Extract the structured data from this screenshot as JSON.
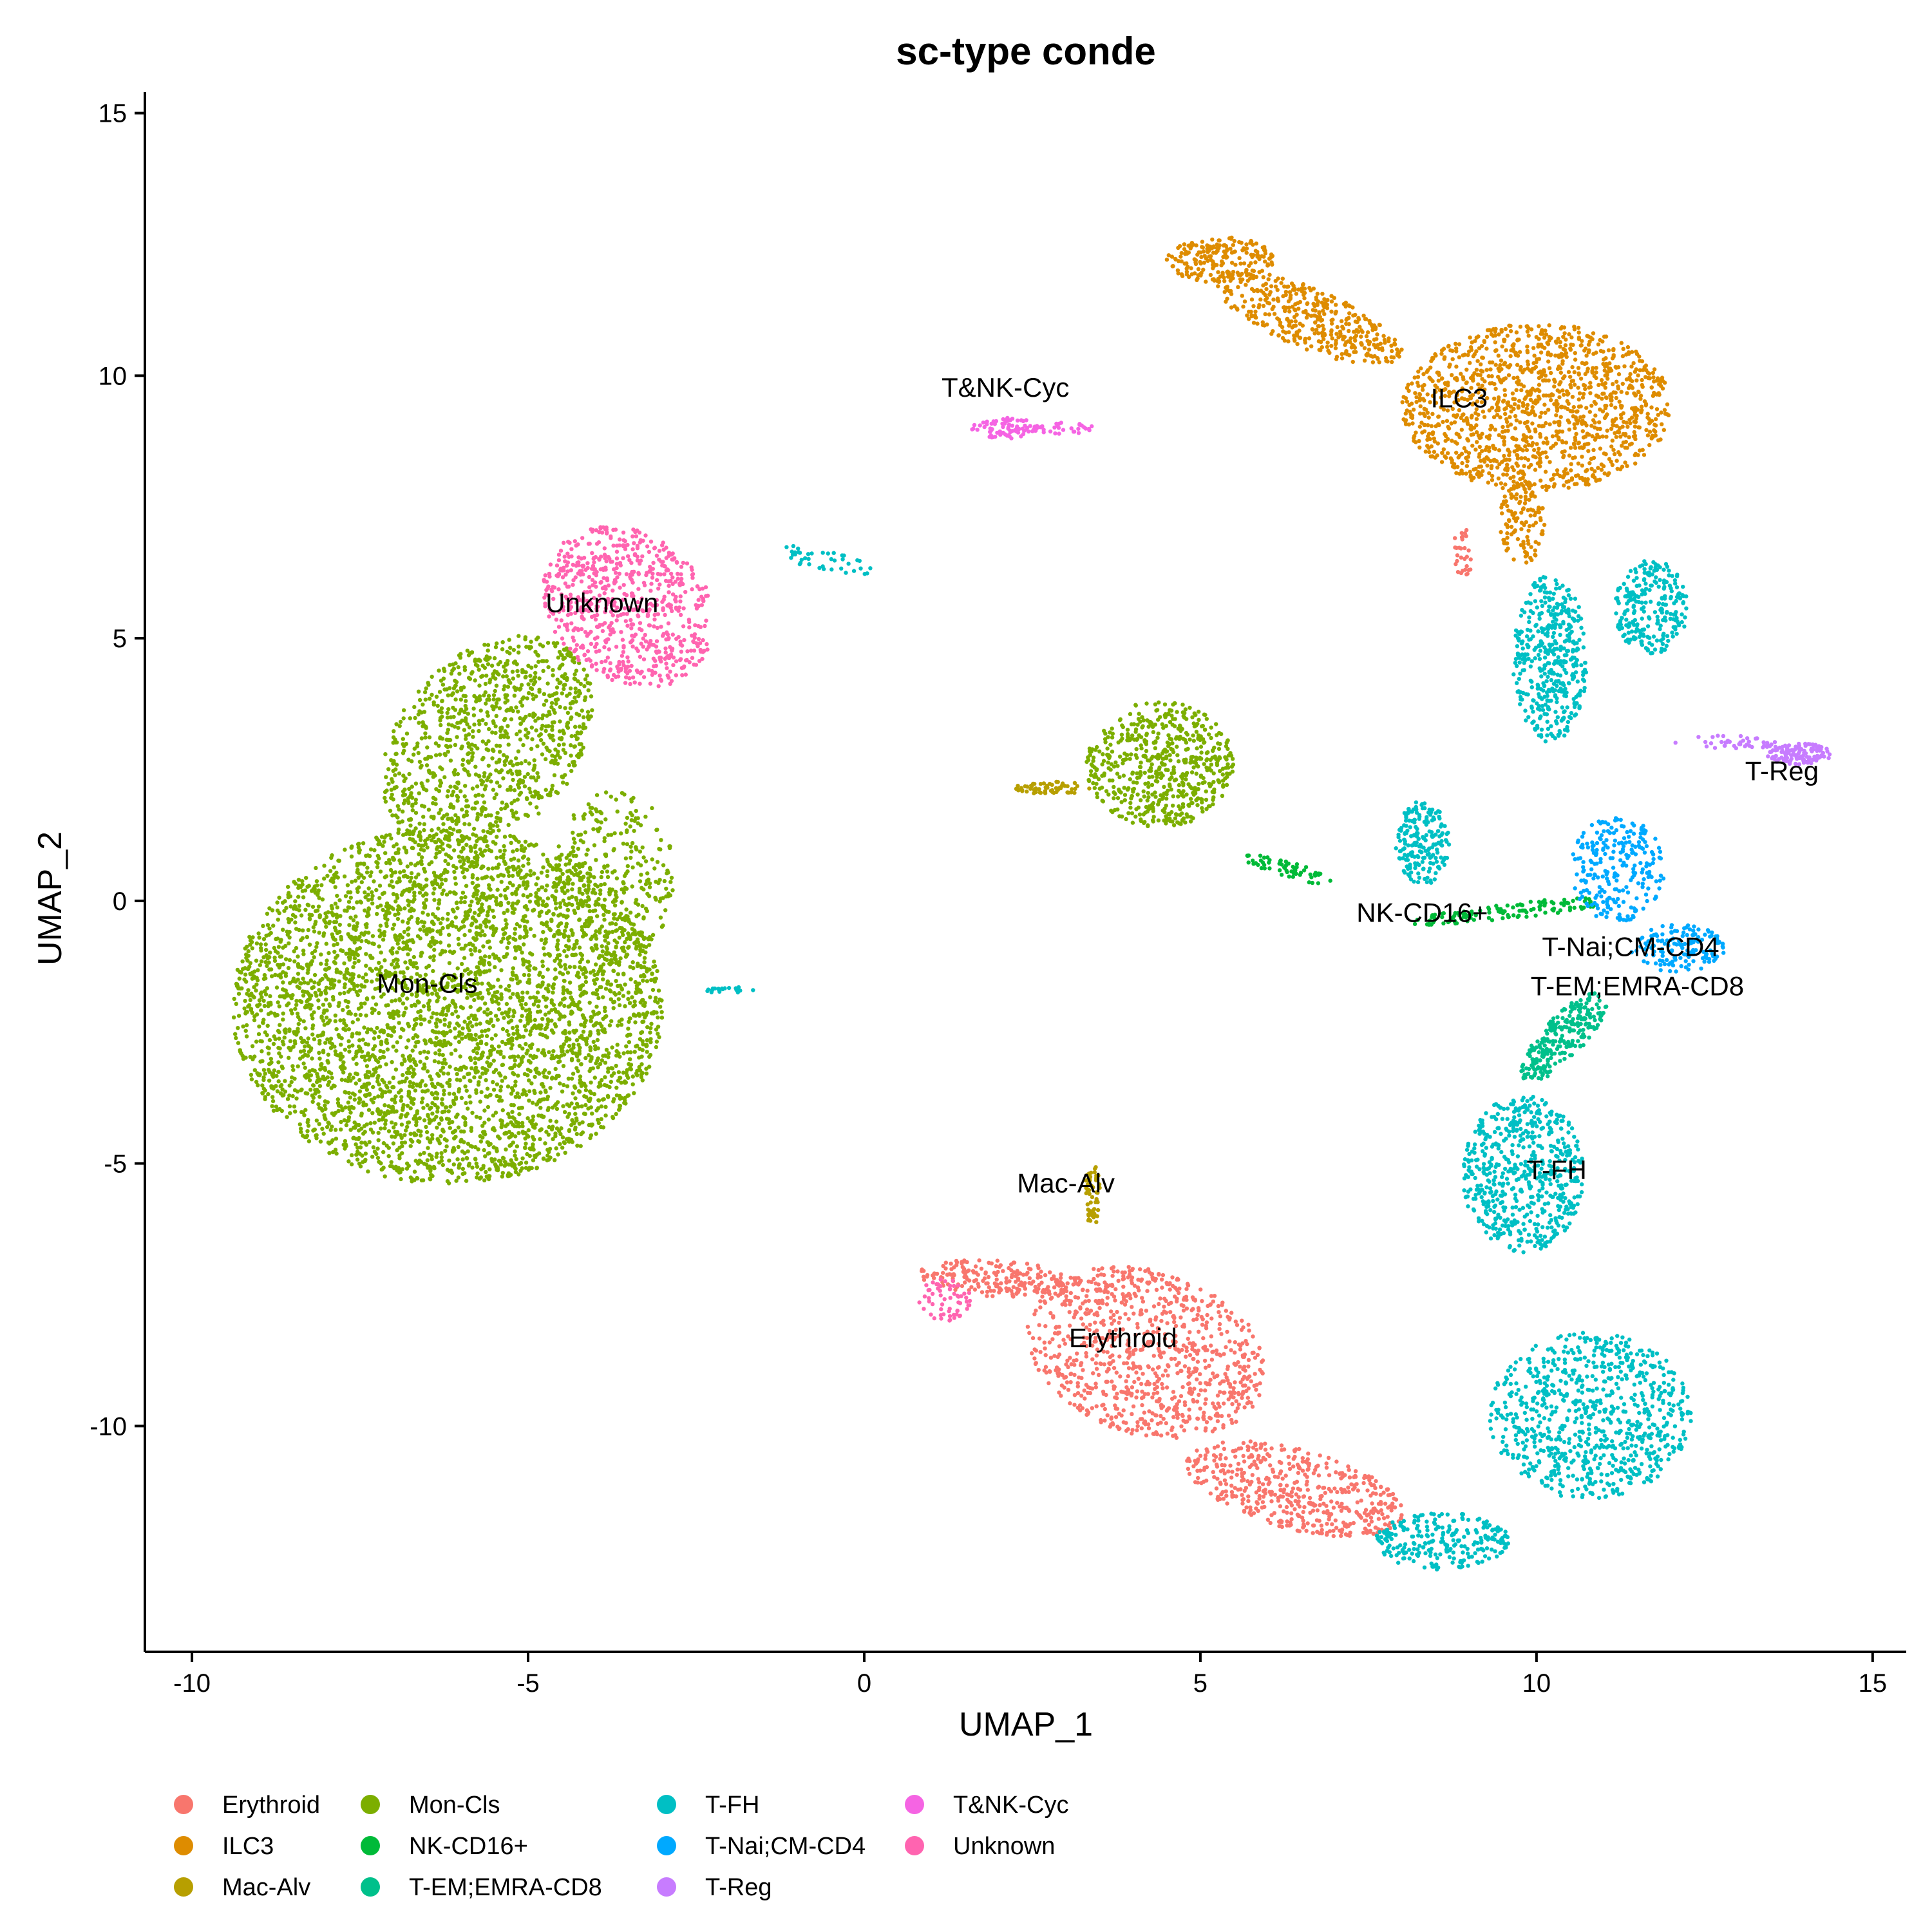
{
  "chart_data": {
    "type": "scatter",
    "title": "sc-type conde",
    "xlabel": "UMAP_1",
    "ylabel": "UMAP_2",
    "xlim": [
      -10.7,
      15.5
    ],
    "ylim": [
      -14.3,
      15.4
    ],
    "xticks": [
      -10,
      -5,
      0,
      5,
      10,
      15
    ],
    "xtick_labels": [
      "-10",
      "-5",
      "0",
      "5",
      "10",
      "15"
    ],
    "yticks": [
      -10,
      -5,
      0,
      5,
      10,
      15
    ],
    "ytick_labels": [
      "-10",
      "-5",
      "0",
      "5",
      "10",
      "15"
    ],
    "grid": false,
    "legend_position": "bottom",
    "series": [
      {
        "name": "Erythroid",
        "color": "#F8766D",
        "label_pos": [
          3.85,
          -8.5
        ],
        "clusters": [
          {
            "cx": 4.2,
            "cy": -8.6,
            "rx": 1.9,
            "ry": 1.5,
            "rot": -35,
            "n": 900
          },
          {
            "cx": 6.4,
            "cy": -11.2,
            "rx": 1.7,
            "ry": 0.75,
            "rot": -20,
            "n": 500
          },
          {
            "cx": 2.0,
            "cy": -7.2,
            "rx": 1.2,
            "ry": 0.35,
            "rot": -5,
            "n": 200
          },
          {
            "cx": 8.9,
            "cy": 6.6,
            "rx": 0.15,
            "ry": 0.5,
            "rot": 0,
            "n": 30
          }
        ]
      },
      {
        "name": "ILC3",
        "color": "#DE8C00",
        "label_pos": [
          8.85,
          9.4
        ],
        "clusters": [
          {
            "cx": 10.0,
            "cy": 9.4,
            "rx": 2.0,
            "ry": 1.6,
            "rot": 0,
            "n": 1300
          },
          {
            "cx": 6.6,
            "cy": 11.1,
            "rx": 1.6,
            "ry": 0.55,
            "rot": -30,
            "n": 400
          },
          {
            "cx": 5.3,
            "cy": 12.2,
            "rx": 0.8,
            "ry": 0.45,
            "rot": 0,
            "n": 200
          },
          {
            "cx": 9.8,
            "cy": 7.2,
            "rx": 0.35,
            "ry": 0.8,
            "rot": 0,
            "n": 120
          }
        ]
      },
      {
        "name": "Mac-Alv",
        "color": "#B79F00",
        "label_pos": [
          3.0,
          -5.55
        ],
        "clusters": [
          {
            "cx": 3.4,
            "cy": -5.6,
            "rx": 0.12,
            "ry": 0.6,
            "rot": 0,
            "n": 60
          },
          {
            "cx": 2.8,
            "cy": 2.15,
            "rx": 0.55,
            "ry": 0.12,
            "rot": 0,
            "n": 60
          }
        ]
      },
      {
        "name": "Mon-Cls",
        "color": "#7CAE00",
        "label_pos": [
          -6.5,
          -1.75
        ],
        "clusters": [
          {
            "cx": -6.2,
            "cy": -2.0,
            "rx": 3.2,
            "ry": 3.4,
            "rot": 0,
            "n": 4200
          },
          {
            "cx": -5.6,
            "cy": 3.0,
            "rx": 1.4,
            "ry": 2.2,
            "rot": -25,
            "n": 1000
          },
          {
            "cx": -3.7,
            "cy": 0.5,
            "rx": 0.9,
            "ry": 1.6,
            "rot": 0,
            "n": 300
          },
          {
            "cx": 4.4,
            "cy": 2.6,
            "rx": 1.1,
            "ry": 1.2,
            "rot": 0,
            "n": 600
          }
        ]
      },
      {
        "name": "NK-CD16+",
        "color": "#00BA38",
        "label_pos": [
          8.3,
          -0.4
        ],
        "clusters": [
          {
            "cx": 9.6,
            "cy": -0.2,
            "rx": 1.5,
            "ry": 0.15,
            "rot": 8,
            "n": 120
          },
          {
            "cx": 6.3,
            "cy": 0.6,
            "rx": 0.7,
            "ry": 0.15,
            "rot": -20,
            "n": 60
          }
        ]
      },
      {
        "name": "T-EM;EMRA-CD8",
        "color": "#00C08B",
        "label_pos": [
          11.5,
          -1.8
        ],
        "clusters": [
          {
            "cx": 10.4,
            "cy": -2.6,
            "rx": 0.35,
            "ry": 1.0,
            "rot": -35,
            "n": 250
          }
        ]
      },
      {
        "name": "T-FH",
        "color": "#00BFC4",
        "label_pos": [
          10.3,
          -5.3
        ],
        "clusters": [
          {
            "cx": 10.8,
            "cy": -9.8,
            "rx": 1.5,
            "ry": 1.6,
            "rot": 0,
            "n": 800
          },
          {
            "cx": 9.8,
            "cy": -5.2,
            "rx": 0.9,
            "ry": 1.5,
            "rot": 0,
            "n": 600
          },
          {
            "cx": 8.6,
            "cy": -12.2,
            "rx": 1.0,
            "ry": 0.55,
            "rot": 0,
            "n": 250
          },
          {
            "cx": 10.2,
            "cy": 4.6,
            "rx": 0.55,
            "ry": 1.6,
            "rot": 0,
            "n": 450
          },
          {
            "cx": 11.7,
            "cy": 5.6,
            "rx": 0.55,
            "ry": 0.9,
            "rot": 0,
            "n": 250
          },
          {
            "cx": 8.3,
            "cy": 1.1,
            "rx": 0.4,
            "ry": 0.8,
            "rot": 0,
            "n": 200
          },
          {
            "cx": -0.6,
            "cy": 6.5,
            "rx": 0.8,
            "ry": 0.2,
            "rot": -15,
            "n": 40
          },
          {
            "cx": -2.0,
            "cy": -1.7,
            "rx": 0.4,
            "ry": 0.06,
            "rot": 0,
            "n": 20
          }
        ]
      },
      {
        "name": "T-Nai;CM-CD4",
        "color": "#00A9FF",
        "label_pos": [
          11.4,
          -1.05
        ],
        "clusters": [
          {
            "cx": 11.2,
            "cy": 0.6,
            "rx": 0.7,
            "ry": 1.0,
            "rot": 0,
            "n": 250
          },
          {
            "cx": 12.1,
            "cy": -0.9,
            "rx": 0.7,
            "ry": 0.45,
            "rot": 0,
            "n": 150
          }
        ]
      },
      {
        "name": "T-Reg",
        "color": "#C77CFF",
        "label_pos": [
          13.65,
          2.3
        ],
        "clusters": [
          {
            "cx": 13.9,
            "cy": 2.8,
            "rx": 0.5,
            "ry": 0.2,
            "rot": 0,
            "n": 120
          },
          {
            "cx": 12.8,
            "cy": 3.0,
            "rx": 0.8,
            "ry": 0.15,
            "rot": 0,
            "n": 40
          }
        ]
      },
      {
        "name": "T&NK-Cyc",
        "color": "#F564E3",
        "label_pos": [
          2.1,
          9.6
        ],
        "clusters": [
          {
            "cx": 2.1,
            "cy": 9.0,
            "rx": 0.5,
            "ry": 0.2,
            "rot": 0,
            "n": 80
          },
          {
            "cx": 3.0,
            "cy": 9.0,
            "rx": 0.5,
            "ry": 0.12,
            "rot": 0,
            "n": 30
          }
        ]
      },
      {
        "name": "Unknown",
        "color": "#FF64B0",
        "label_pos": [
          -3.9,
          5.5
        ],
        "clusters": [
          {
            "cx": -3.5,
            "cy": 5.6,
            "rx": 1.2,
            "ry": 1.6,
            "rot": 25,
            "n": 700
          },
          {
            "cx": 1.2,
            "cy": -7.6,
            "rx": 0.4,
            "ry": 0.4,
            "rot": 0,
            "n": 60
          }
        ]
      }
    ]
  }
}
